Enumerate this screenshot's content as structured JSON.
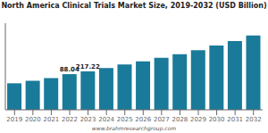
{
  "chart_data": {
    "type": "bar",
    "title": "North America Clinical Trials Market Size, 2019-2032 (USD Billion)",
    "categories": [
      "2019",
      "2020",
      "2021",
      "2022",
      "2023",
      "2024",
      "2025",
      "2026",
      "2027",
      "2028",
      "2029",
      "2030",
      "2031",
      "2032"
    ],
    "values": [
      5.2,
      5.7,
      6.2,
      7.0,
      7.55,
      8.2,
      8.9,
      9.5,
      10.2,
      10.9,
      11.7,
      12.6,
      13.5,
      14.6
    ],
    "color": "#1a7a9a",
    "ylim": [
      0,
      17.0
    ],
    "yticks": [],
    "grid": false,
    "tick_labels": "x",
    "annotations": [
      {
        "x": "2022",
        "text": "88.04"
      },
      {
        "x": "2023",
        "text": "217.22"
      },
      {
        "text": "www.brahmresearchgroup.com"
      }
    ]
  }
}
